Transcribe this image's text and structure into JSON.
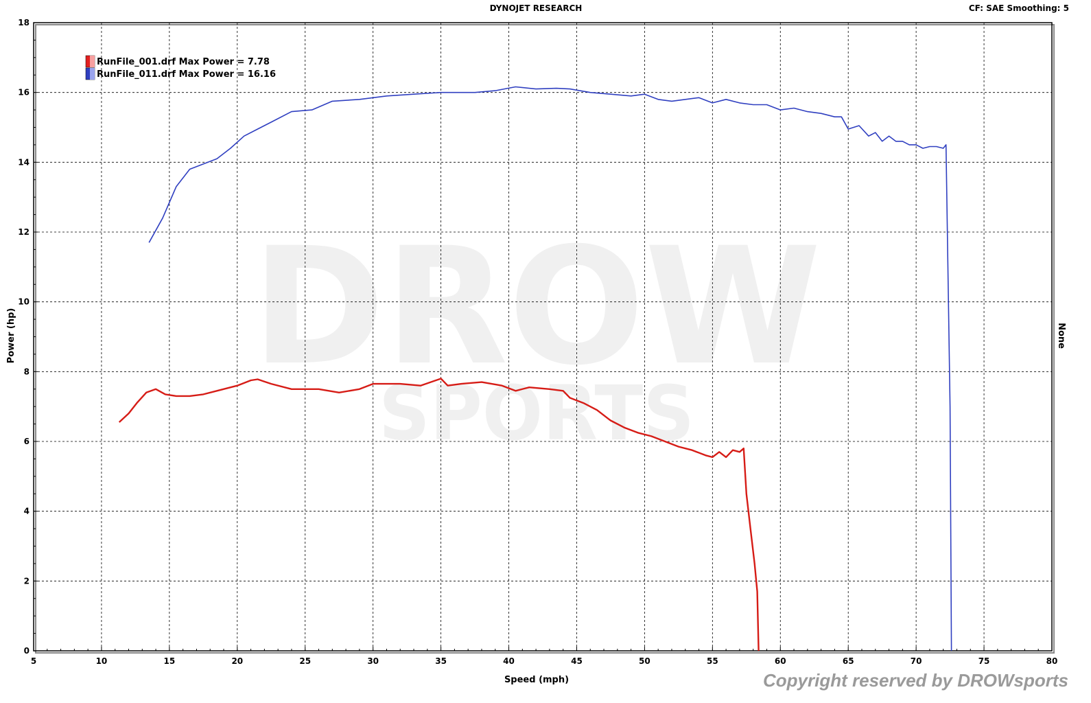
{
  "header": {
    "title": "DYNOJET RESEARCH",
    "cf_label": "CF: SAE  Smoothing: 5"
  },
  "right_label": "None",
  "watermark": {
    "line1": "DROW",
    "line2": "SPORTS"
  },
  "copyright": "Copyright reserved by DROWsports",
  "colors": {
    "run1": "#d61c16",
    "run2": "#2f3fc0",
    "grid": "#000000",
    "watermark": "#000000"
  },
  "chart_data": {
    "type": "line",
    "xlabel": "Speed (mph)",
    "ylabel": "Power (hp)",
    "xlim": [
      5,
      80
    ],
    "ylim": [
      0,
      18
    ],
    "x_ticks": [
      5,
      10,
      15,
      20,
      25,
      30,
      35,
      40,
      45,
      50,
      55,
      60,
      65,
      70,
      75,
      80
    ],
    "y_ticks": [
      0,
      2,
      4,
      6,
      8,
      10,
      12,
      14,
      16,
      18
    ],
    "grid": true,
    "legend_position": "top-left",
    "series": [
      {
        "name": "RunFile_001.drf Max Power = 7.78",
        "color": "#d61c16",
        "x": [
          11.3,
          12.0,
          12.6,
          13.3,
          14.0,
          14.7,
          15.5,
          16.5,
          17.5,
          18.5,
          20.0,
          21.0,
          21.5,
          22.5,
          24.0,
          26.0,
          27.5,
          29.0,
          30.0,
          32.0,
          33.5,
          35.0,
          35.5,
          36.5,
          38.0,
          39.5,
          40.5,
          41.5,
          43.0,
          44.0,
          44.5,
          45.5,
          46.5,
          47.5,
          48.5,
          49.5,
          50.5,
          51.5,
          52.5,
          53.5,
          54.5,
          55.0,
          55.5,
          56.0,
          56.5,
          57.0,
          57.3,
          57.5,
          57.8,
          58.1,
          58.3,
          58.4
        ],
        "y": [
          6.55,
          6.8,
          7.1,
          7.4,
          7.5,
          7.35,
          7.3,
          7.3,
          7.35,
          7.45,
          7.6,
          7.75,
          7.78,
          7.65,
          7.5,
          7.5,
          7.4,
          7.5,
          7.65,
          7.65,
          7.6,
          7.8,
          7.6,
          7.65,
          7.7,
          7.6,
          7.45,
          7.55,
          7.5,
          7.45,
          7.25,
          7.1,
          6.9,
          6.6,
          6.4,
          6.25,
          6.15,
          6.0,
          5.85,
          5.75,
          5.6,
          5.55,
          5.7,
          5.55,
          5.75,
          5.7,
          5.8,
          4.5,
          3.5,
          2.5,
          1.7,
          0.0
        ]
      },
      {
        "name": "RunFile_011.drf Max Power = 16.16",
        "color": "#2f3fc0",
        "x": [
          13.5,
          14.5,
          15.5,
          16.5,
          17.5,
          18.5,
          19.5,
          20.5,
          21.5,
          22.5,
          24.0,
          25.5,
          27.0,
          29.0,
          31.0,
          33.0,
          35.0,
          37.5,
          39.0,
          40.5,
          42.0,
          43.5,
          44.5,
          46.0,
          47.5,
          49.0,
          50.0,
          51.0,
          52.0,
          53.0,
          54.0,
          55.0,
          56.0,
          57.0,
          58.0,
          59.0,
          60.0,
          61.0,
          62.0,
          63.0,
          64.0,
          64.5,
          65.0,
          65.8,
          66.5,
          67.0,
          67.5,
          68.0,
          68.5,
          69.0,
          69.5,
          70.0,
          70.5,
          71.0,
          71.5,
          72.0,
          72.2,
          72.5,
          72.6
        ],
        "y": [
          11.7,
          12.4,
          13.3,
          13.8,
          13.95,
          14.1,
          14.4,
          14.75,
          14.95,
          15.15,
          15.45,
          15.5,
          15.75,
          15.8,
          15.9,
          15.95,
          16.0,
          16.0,
          16.05,
          16.16,
          16.1,
          16.12,
          16.1,
          16.0,
          15.95,
          15.9,
          15.95,
          15.8,
          15.75,
          15.8,
          15.85,
          15.7,
          15.8,
          15.7,
          15.65,
          15.65,
          15.5,
          15.55,
          15.45,
          15.4,
          15.3,
          15.3,
          14.95,
          15.05,
          14.75,
          14.85,
          14.6,
          14.75,
          14.6,
          14.6,
          14.5,
          14.5,
          14.4,
          14.45,
          14.45,
          14.4,
          14.5,
          7.0,
          0.0
        ]
      }
    ]
  }
}
